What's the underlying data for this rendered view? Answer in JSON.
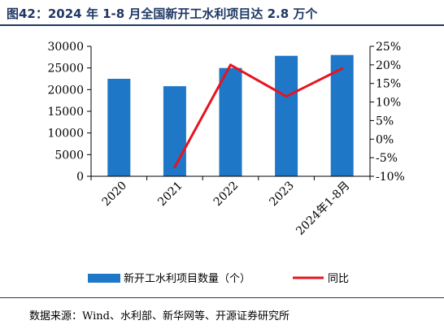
{
  "header": {
    "title": "图42：2024 年 1-8 月全国新开工水利项目达 2.8 万个"
  },
  "footer": {
    "source": "数据来源：Wind、水利部、新华网等、开源证券研究所"
  },
  "colors": {
    "bar": "#1f77c8",
    "line": "#e6141f",
    "title": "#1f3864"
  },
  "chart_data": {
    "type": "bar",
    "categories": [
      "2020",
      "2021",
      "2022",
      "2023",
      "2024年1-8月"
    ],
    "series": [
      {
        "name": "新开工水利项目数量（个）",
        "type": "bar",
        "axis": "left",
        "values": [
          22500,
          20800,
          25000,
          27800,
          28000
        ]
      },
      {
        "name": "同比",
        "type": "line",
        "axis": "right",
        "values": [
          null,
          -7.5,
          20.0,
          11.5,
          19.0
        ]
      }
    ],
    "y_left": {
      "range": [
        0,
        30000
      ],
      "ticks": [
        "0",
        "5000",
        "10000",
        "15000",
        "20000",
        "25000",
        "30000"
      ]
    },
    "y_right": {
      "range": [
        -10,
        25
      ],
      "ticks": [
        "-10%",
        "-5%",
        "0%",
        "5%",
        "10%",
        "15%",
        "20%",
        "25%"
      ]
    },
    "grid": false,
    "legend_position": "bottom"
  }
}
